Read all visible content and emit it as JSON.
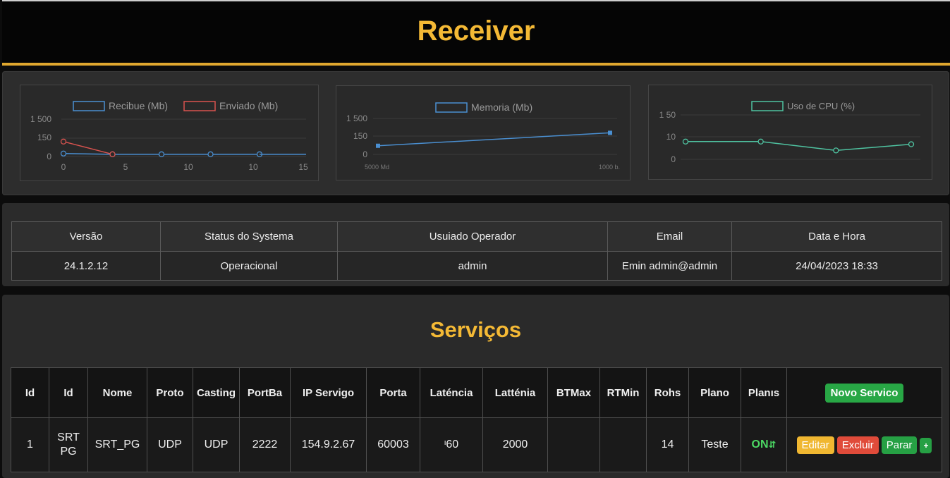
{
  "app": {
    "title": "Receiver"
  },
  "charts": {
    "network": {
      "legend": [
        {
          "label": "Recibue (Mb)",
          "color": "#4a8fd1"
        },
        {
          "label": "Enviado (Mb)",
          "color": "#d9534f"
        }
      ],
      "y_ticks": [
        "1 500",
        "150",
        "0"
      ],
      "x_ticks": [
        "0",
        "5",
        "10",
        "10",
        "15"
      ]
    },
    "memory": {
      "legend": [
        {
          "label": "Memoria (Mb)",
          "color": "#4a8fd1"
        }
      ],
      "y_ticks": [
        "1 500",
        "150",
        "0"
      ],
      "x_ticks": [
        "5000 Md",
        "1000 b."
      ]
    },
    "cpu": {
      "legend": [
        {
          "label": "Uso de CPU (%)",
          "color": "#4fc3a1"
        }
      ],
      "y_ticks": [
        "1 50",
        "10",
        "0"
      ]
    }
  },
  "chart_data": [
    {
      "type": "line",
      "categories": [
        "0",
        "5",
        "10",
        "10",
        "15"
      ],
      "series": [
        {
          "name": "Recibue (Mb)",
          "values": [
            40,
            30,
            30,
            30,
            30
          ]
        },
        {
          "name": "Enviado (Mb)",
          "values": [
            200,
            30,
            null,
            null,
            null
          ]
        }
      ],
      "ylim": [
        0,
        500
      ]
    },
    {
      "type": "line",
      "categories": [
        "5000 Md",
        "1000 b."
      ],
      "series": [
        {
          "name": "Memoria (Mb)",
          "values": [
            120,
            300
          ]
        }
      ],
      "ylim": [
        0,
        500
      ]
    },
    {
      "type": "line",
      "categories": [
        "",
        "",
        "",
        ""
      ],
      "series": [
        {
          "name": "Uso de CPU (%)",
          "values": [
            20,
            20,
            10,
            17
          ]
        }
      ],
      "ylim": [
        0,
        50
      ]
    }
  ],
  "info": {
    "headers": [
      "Versão",
      "Status do Systema",
      "Usuiado Operador",
      "Email",
      "Data e Hora"
    ],
    "values": [
      "24.1.2.12",
      "Operacional",
      "admin",
      "Emin admin@admin",
      "24/04/2023 18:33"
    ]
  },
  "services": {
    "title": "Serviços",
    "headers": [
      "Id",
      "Id",
      "Nome",
      "Proto",
      "Casting",
      "PortBa",
      "IP Servigo",
      "Porta",
      "Laténcia",
      "Latténia",
      "BTMax",
      "RTMin",
      "Rohs",
      "Plano",
      "Planıs"
    ],
    "new_button": "Novo Servico",
    "row": {
      "id": "1",
      "id2_line1": "SRT",
      "id2_line2": "PG",
      "nome": "SRT_PG",
      "proto": "UDP",
      "casting": "UDP",
      "portba": "2222",
      "ip": "154.9.2.67",
      "porta": "60003",
      "latencia": "ᶦ60",
      "lattenia": "2000",
      "btmax": "",
      "rtmin": "",
      "rohs": "14",
      "plano": "Teste",
      "status": "ON",
      "status_icon": "⇵"
    },
    "actions": {
      "edit": "Editar",
      "delete": "Excluir",
      "stop": "Parar",
      "plus": "+"
    },
    "colors": {
      "accent": "#f4b935",
      "on": "#4cd964",
      "edit": "#f0b731",
      "delete": "#e04b3a",
      "stop": "#26a044"
    }
  }
}
